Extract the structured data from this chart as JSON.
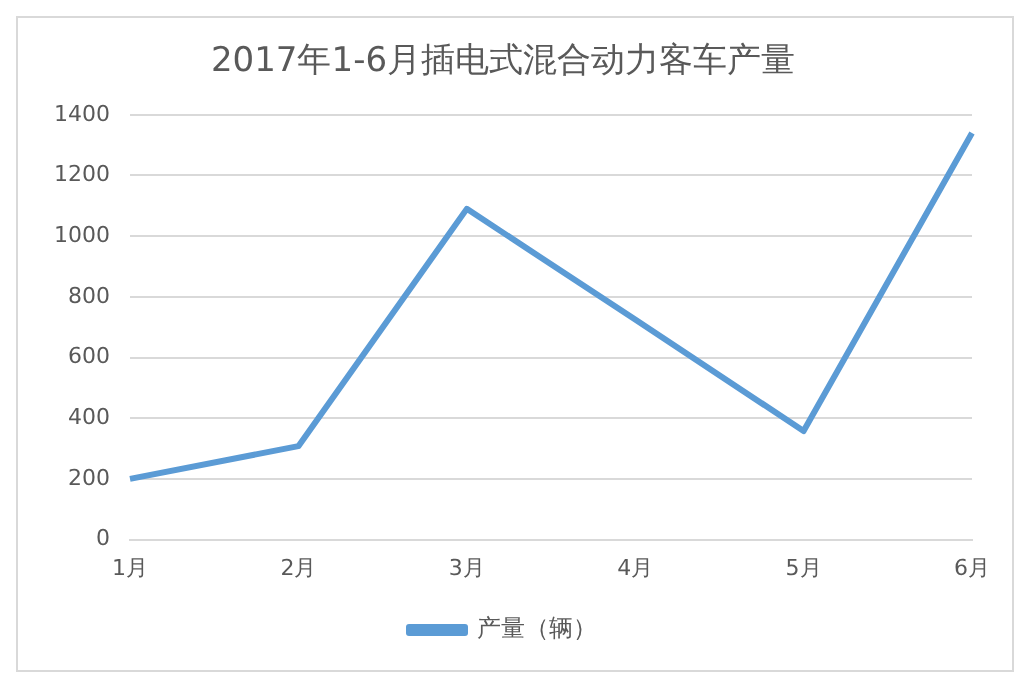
{
  "chart_data": {
    "type": "line",
    "title": "2017年1-6月插电式混合动力客车产量",
    "categories": [
      "1月",
      "2月",
      "3月",
      "4月",
      "5月",
      "6月"
    ],
    "series": [
      {
        "name": "产量（辆）",
        "color": "#5b9bd5",
        "values": [
          200,
          308,
          1090,
          725,
          358,
          1340
        ]
      }
    ],
    "ylim": [
      0,
      1400
    ],
    "yticks": [
      0,
      200,
      400,
      600,
      800,
      1000,
      1200,
      1400
    ],
    "grid": "y",
    "legend": "bottom",
    "marker": "none"
  }
}
